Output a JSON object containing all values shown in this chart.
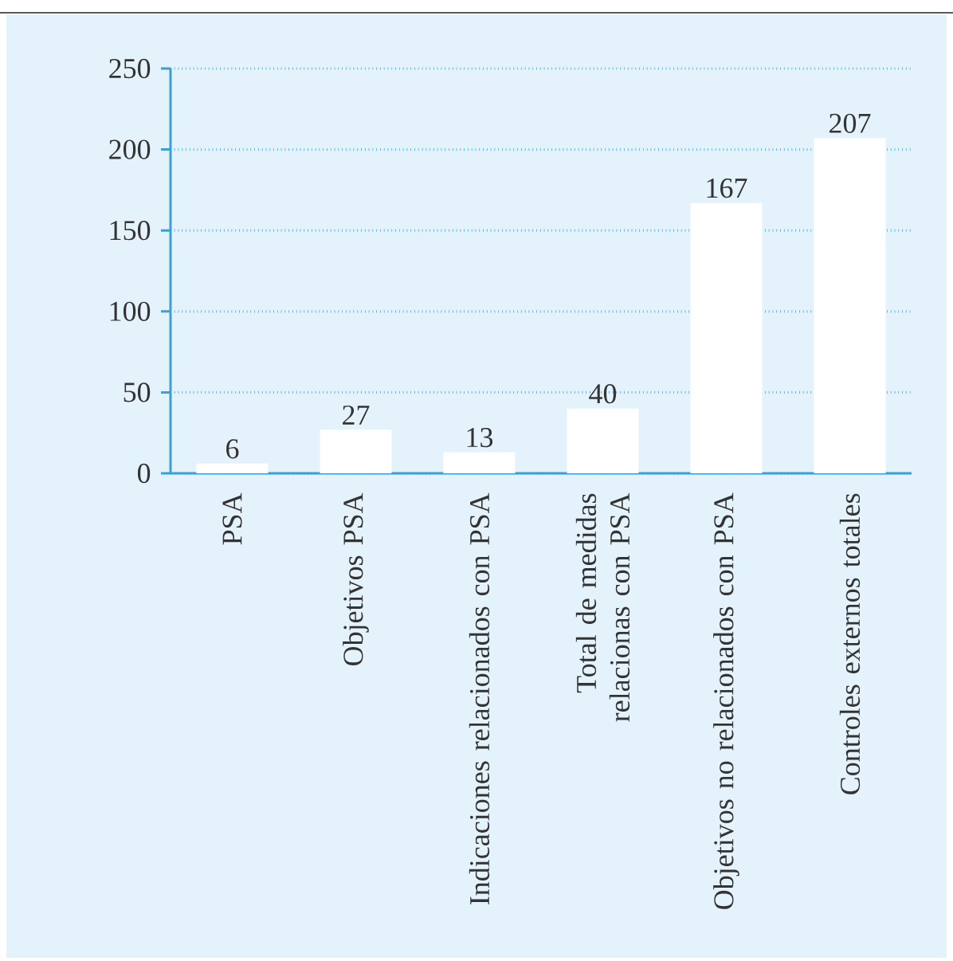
{
  "chart_data": {
    "type": "bar",
    "categories": [
      "PSA",
      "Objetivos PSA",
      "Indicaciones relacionados con PSA",
      "Total de medidas relacionas con PSA",
      "Objetivos no relacionados con PSA",
      "Controles externos totales"
    ],
    "values": [
      6,
      27,
      13,
      40,
      167,
      207
    ],
    "color": "#ffffff",
    "ylim": [
      0,
      250
    ],
    "yticks": [
      0,
      50,
      100,
      150,
      200,
      250
    ],
    "grid": "y",
    "data_labels": true
  }
}
